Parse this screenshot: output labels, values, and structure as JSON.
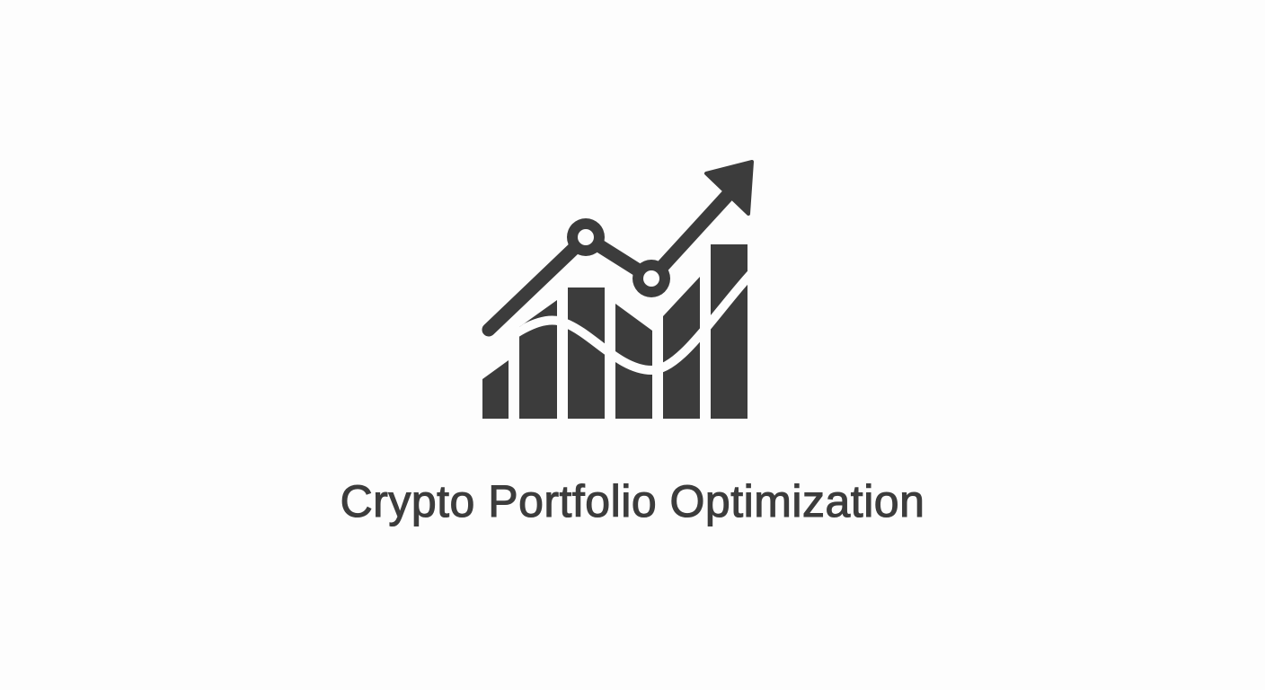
{
  "logo": {
    "icon": "bar-chart-with-trend-arrow",
    "color": "#3c3c3c",
    "background": "#fdfdfd"
  },
  "title": "Crypto Portfolio Optimization"
}
